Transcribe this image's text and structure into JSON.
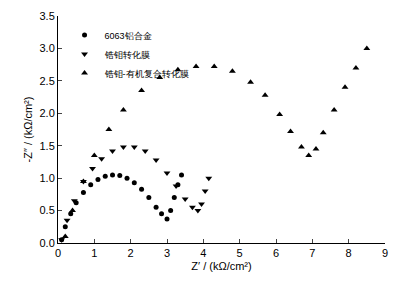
{
  "chart_data": {
    "type": "scatter",
    "x_label": "Z′ / (kΩ/cm²)",
    "y_label": "-Z″ / (kΩ/cm²)",
    "xlim": [
      0,
      9
    ],
    "xticks": [
      0,
      1,
      2,
      3,
      4,
      5,
      6,
      7,
      8,
      9
    ],
    "ylim": [
      0,
      3.5
    ],
    "yticks": [
      {
        "value": 0,
        "label": "0.0"
      },
      0.5,
      {
        "value": 1,
        "label": "1.0"
      },
      1.5,
      {
        "value": 2,
        "label": "2.0"
      },
      2.5,
      {
        "value": 3,
        "label": "3.0"
      },
      3.5
    ],
    "legend": "top left",
    "grid": false,
    "series": [
      {
        "name": "6063铝合金",
        "color": "#000000",
        "marker": "circle",
        "x": [
          0.1,
          0.2,
          0.35,
          0.5,
          0.7,
          0.9,
          1.1,
          1.3,
          1.5,
          1.7,
          1.9,
          2.1,
          2.3,
          2.5,
          2.7,
          2.85,
          3.0,
          3.1,
          3.2,
          3.3,
          3.4
        ],
        "values": [
          0.05,
          0.25,
          0.45,
          0.62,
          0.78,
          0.9,
          0.98,
          1.03,
          1.05,
          1.04,
          1.0,
          0.93,
          0.83,
          0.7,
          0.55,
          0.45,
          0.37,
          0.5,
          0.7,
          0.9,
          1.05
        ]
      },
      {
        "name": "锆钼转化膜",
        "color": "#000000",
        "marker": "triangle-down",
        "x": [
          0.1,
          0.25,
          0.45,
          0.7,
          0.95,
          1.2,
          1.5,
          1.8,
          2.1,
          2.4,
          2.7,
          3.0,
          3.25,
          3.5,
          3.7,
          3.85,
          3.95,
          4.05,
          4.15
        ],
        "values": [
          0.05,
          0.35,
          0.65,
          0.95,
          1.15,
          1.3,
          1.42,
          1.48,
          1.48,
          1.42,
          1.28,
          1.08,
          0.88,
          0.68,
          0.55,
          0.5,
          0.6,
          0.8,
          1.0
        ]
      },
      {
        "name": "锆钼-有机复合转化膜",
        "color": "#000000",
        "marker": "triangle-up",
        "x": [
          0.2,
          0.4,
          0.7,
          1.0,
          1.4,
          1.8,
          2.3,
          2.8,
          3.3,
          3.8,
          4.3,
          4.8,
          5.3,
          5.7,
          6.1,
          6.4,
          6.7,
          6.9,
          7.1,
          7.3,
          7.6,
          7.9,
          8.2,
          8.5
        ],
        "values": [
          0.1,
          0.5,
          0.95,
          1.35,
          1.75,
          2.05,
          2.35,
          2.55,
          2.67,
          2.72,
          2.72,
          2.65,
          2.48,
          2.28,
          1.98,
          1.72,
          1.48,
          1.35,
          1.45,
          1.7,
          2.05,
          2.4,
          2.7,
          3.0
        ]
      }
    ]
  }
}
